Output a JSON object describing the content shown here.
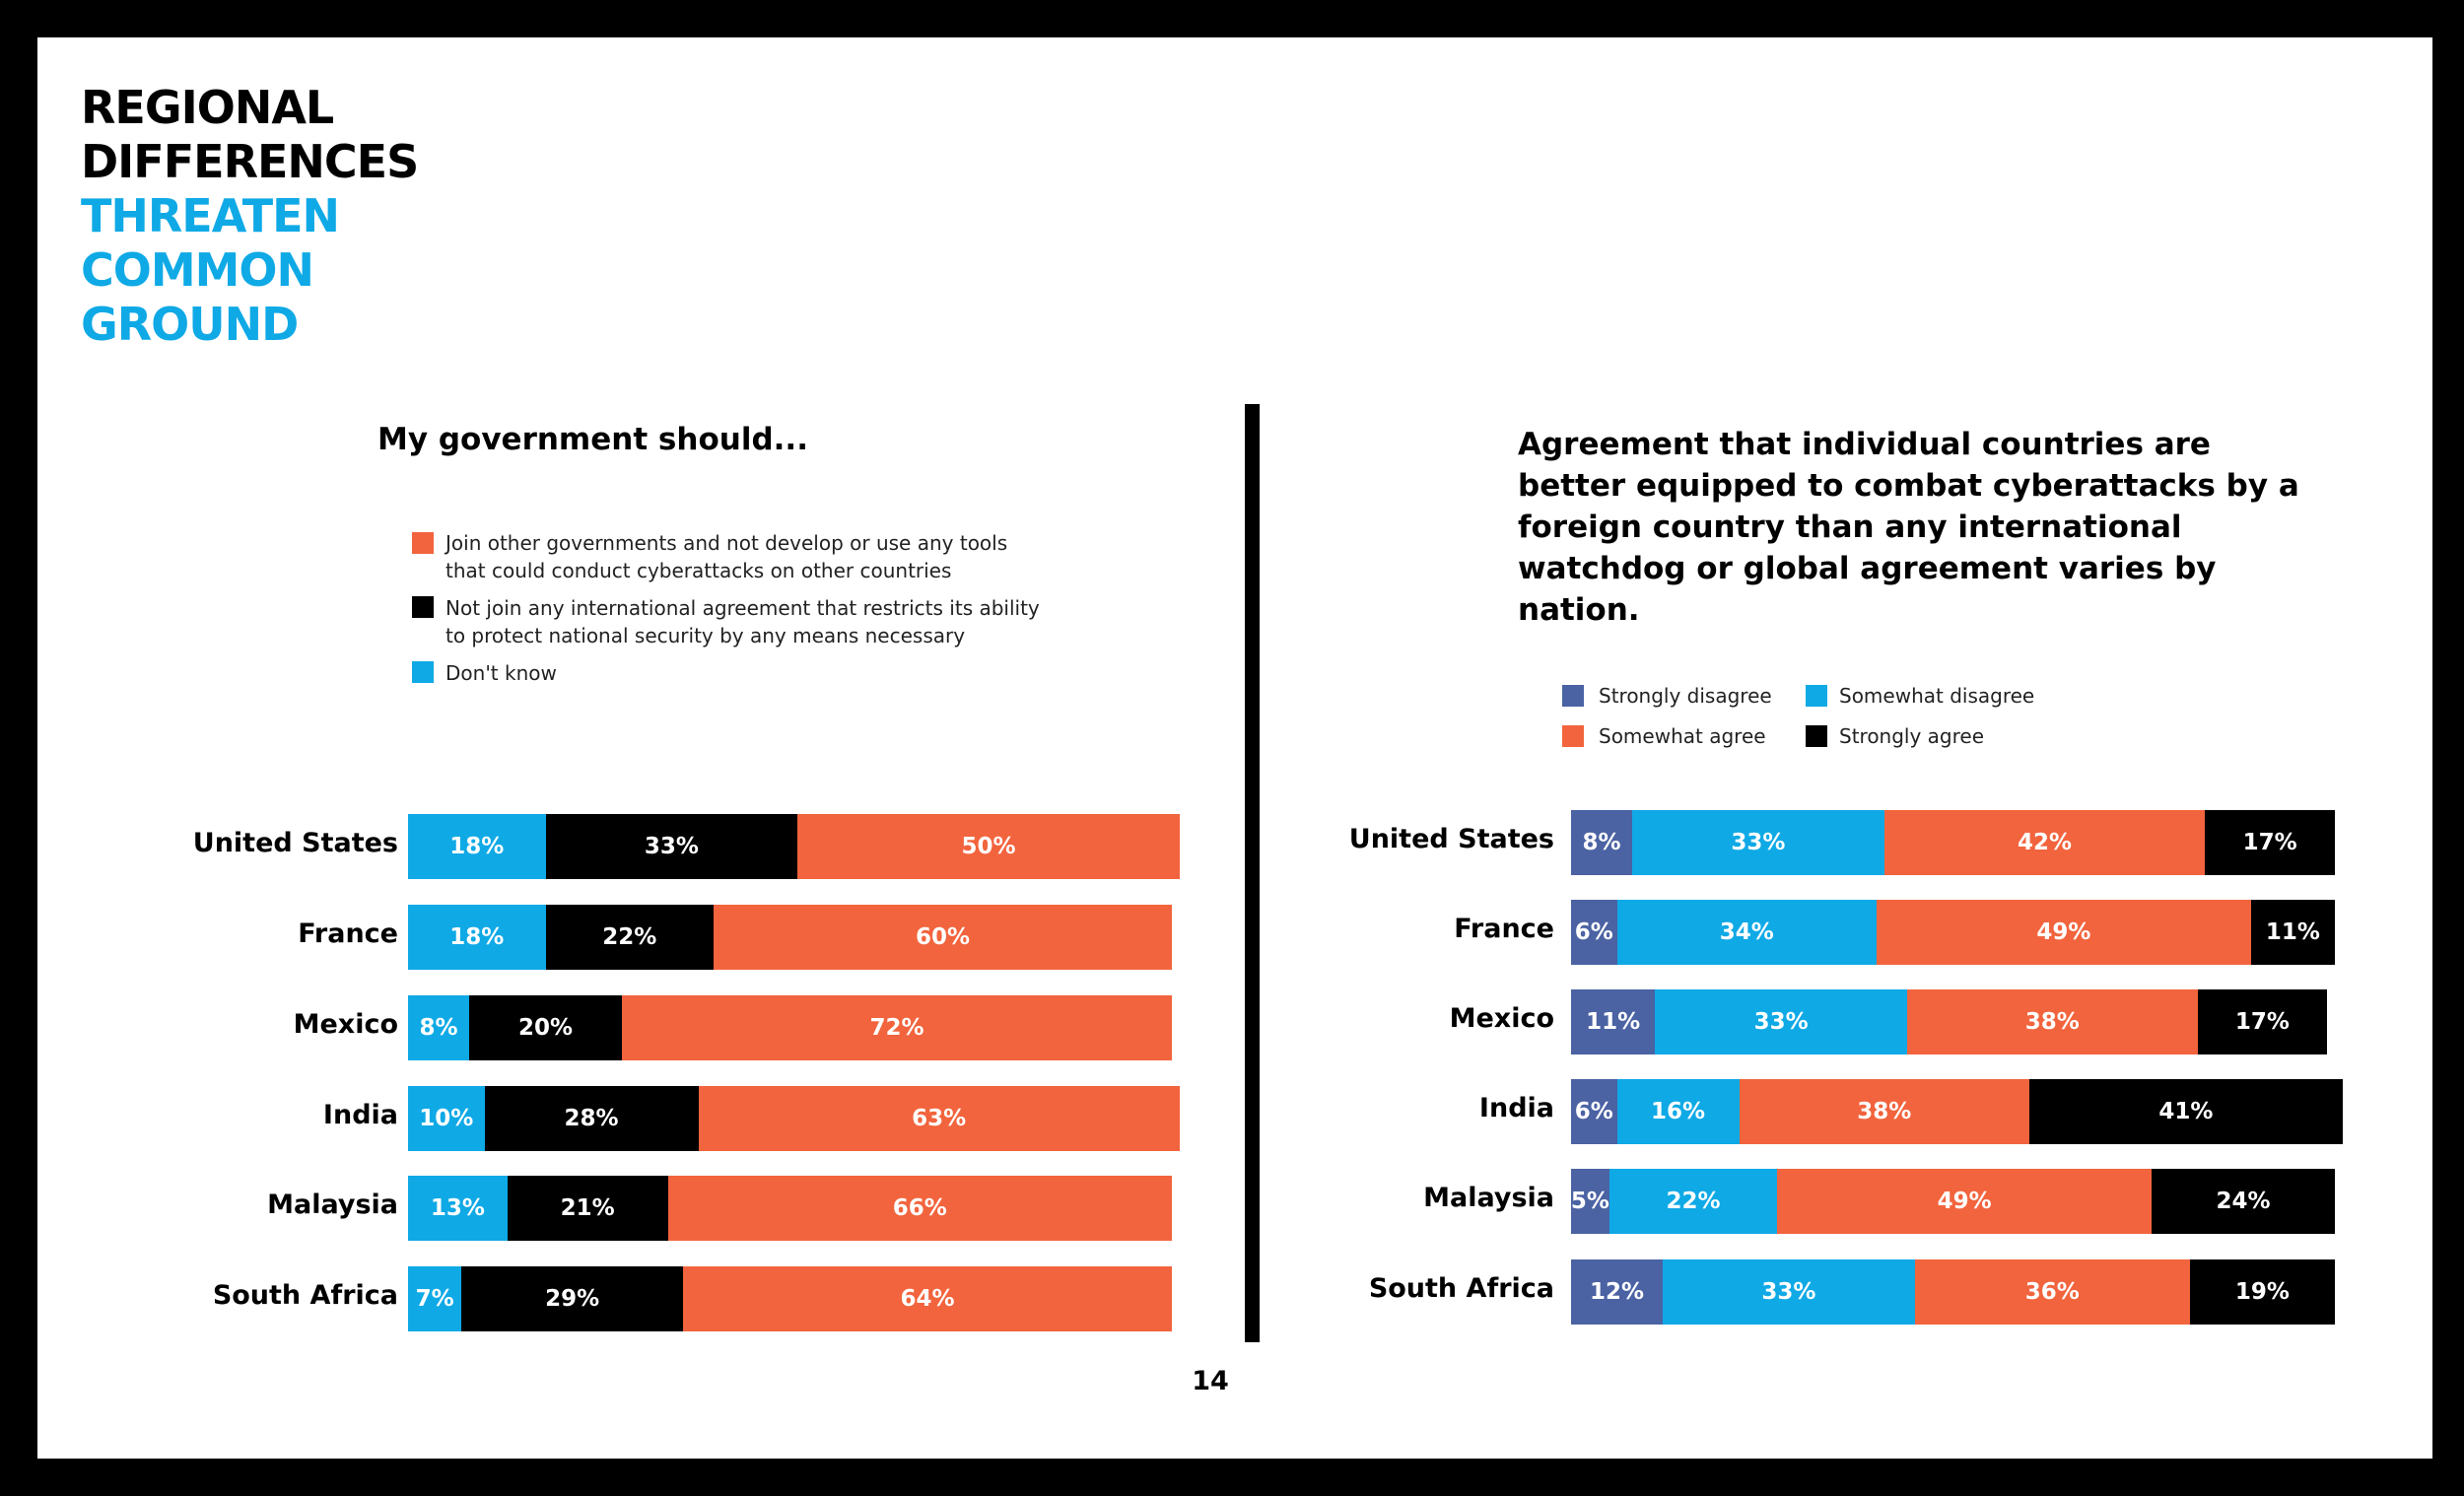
{
  "title": {
    "line1": "REGIONAL",
    "line2": "DIFFERENCES",
    "line3": "THREATEN",
    "line4": "COMMON",
    "line5": "GROUND"
  },
  "page_number": "14",
  "colors": {
    "orange": "#f2643d",
    "black": "#000000",
    "cyan": "#0fa9e6",
    "slate": "#4b62a3"
  },
  "chart_data": [
    {
      "type": "bar",
      "orientation": "horizontal-stacked",
      "title": "My government should...",
      "categories": [
        "United States",
        "France",
        "Mexico",
        "India",
        "Malaysia",
        "South Africa"
      ],
      "legend": [
        {
          "name": "Join other governments and not develop or use any tools",
          "name_line2": "that could conduct  cyberattacks on other countries",
          "color": "#f2643d"
        },
        {
          "name": "Not join any international agreement that restricts its ability",
          "name_line2": "to protect national security by any means necessary",
          "color": "#000000"
        },
        {
          "name": "Don't know",
          "name_line2": "",
          "color": "#0fa9e6"
        }
      ],
      "series": [
        {
          "name": "Don't know",
          "color": "#0fa9e6",
          "values": [
            18,
            18,
            8,
            10,
            13,
            7
          ],
          "labels": [
            "18%",
            "18%",
            "8%",
            "10%",
            "13%",
            "7%"
          ]
        },
        {
          "name": "Not join any international agreement",
          "color": "#000000",
          "values": [
            33,
            22,
            20,
            28,
            21,
            29
          ],
          "labels": [
            "33%",
            "22%",
            "20%",
            "28%",
            "21%",
            "29%"
          ]
        },
        {
          "name": "Join other governments",
          "color": "#f2643d",
          "values": [
            50,
            60,
            72,
            63,
            66,
            64
          ],
          "labels": [
            "50%",
            "60%",
            "72%",
            "63%",
            "66%",
            "64%"
          ]
        }
      ]
    },
    {
      "type": "bar",
      "orientation": "horizontal-stacked",
      "title": "Agreement that individual countries are better equipped to combat cyberattacks by a foreign country than any  international watchdog or global agreement varies by nation.",
      "categories": [
        "United States",
        "France",
        "Mexico",
        "India",
        "Malaysia",
        "South Africa"
      ],
      "legend": [
        {
          "name": "Strongly disagree",
          "color": "#4b62a3"
        },
        {
          "name": "Somewhat disagree",
          "color": "#0fa9e6"
        },
        {
          "name": "Somewhat agree",
          "color": "#f2643d"
        },
        {
          "name": "Strongly agree",
          "color": "#000000"
        }
      ],
      "series": [
        {
          "name": "Strongly disagree",
          "color": "#4b62a3",
          "values": [
            8,
            6,
            11,
            6,
            5,
            12
          ],
          "labels": [
            "8%",
            "6%",
            "11%",
            "6%",
            "5%",
            "12%"
          ]
        },
        {
          "name": "Somewhat disagree",
          "color": "#0fa9e6",
          "values": [
            33,
            34,
            33,
            16,
            22,
            33
          ],
          "labels": [
            "33%",
            "34%",
            "33%",
            "16%",
            "22%",
            "33%"
          ]
        },
        {
          "name": "Somewhat agree",
          "color": "#f2643d",
          "values": [
            42,
            49,
            38,
            38,
            49,
            36
          ],
          "labels": [
            "42%",
            "49%",
            "38%",
            "38%",
            "49%",
            "36%"
          ]
        },
        {
          "name": "Strongly agree",
          "color": "#000000",
          "values": [
            17,
            11,
            17,
            41,
            24,
            19
          ],
          "labels": [
            "17%",
            "11%",
            "17%",
            "41%",
            "24%",
            "19%"
          ]
        }
      ]
    }
  ]
}
